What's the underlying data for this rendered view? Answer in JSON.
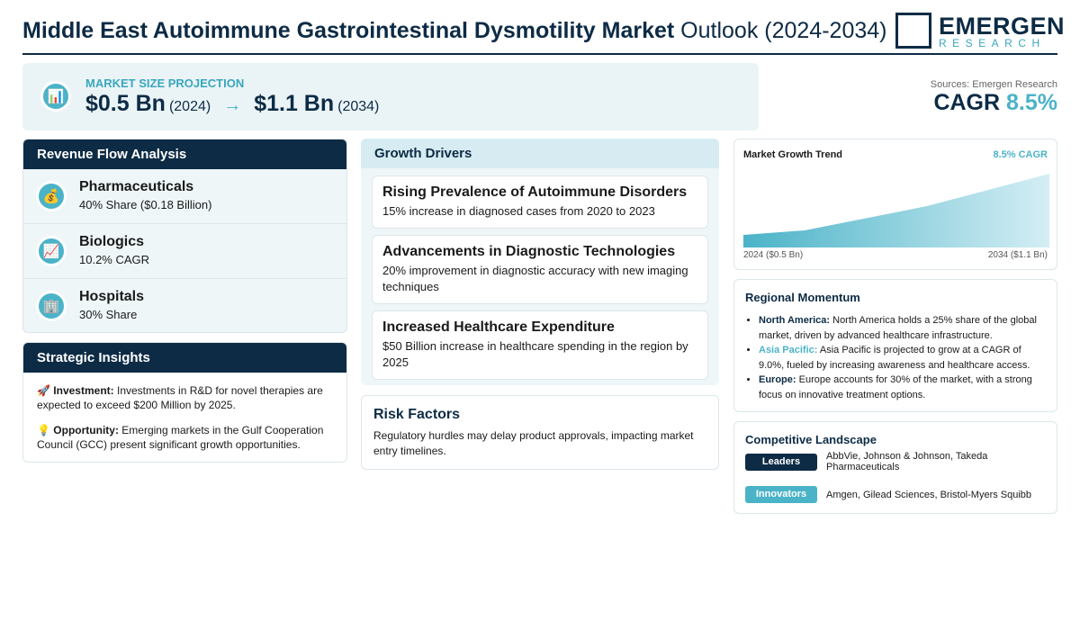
{
  "header": {
    "title_bold": "Middle East Autoimmune Gastrointestinal Dysmotility Market",
    "title_rest": "Outlook (2024-2034)",
    "logo": "EMERGEN",
    "logo_sub": "RESEARCH"
  },
  "projection": {
    "icon": "📊",
    "label": "MARKET SIZE PROJECTION",
    "start_value": "$0.5 Bn",
    "start_year": "(2024)",
    "arrow": "→",
    "end_value": "$1.1 Bn",
    "end_year": "(2034)"
  },
  "summary": {
    "sources": "Sources: Emergen Research",
    "cagr_label": "CAGR",
    "cagr_value": "8.5%"
  },
  "revenue": {
    "title": "Revenue Flow Analysis",
    "items": [
      {
        "icon": "💰",
        "name": "Pharmaceuticals",
        "detail": "40% Share ($0.18 Billion)"
      },
      {
        "icon": "📈",
        "name": "Biologics",
        "detail": "10.2% CAGR"
      },
      {
        "icon": "🏢",
        "name": "Hospitals",
        "detail": "30% Share"
      }
    ]
  },
  "strategic": {
    "title": "Strategic Insights",
    "items": [
      {
        "icon": "🚀",
        "label": "Investment:",
        "text": "Investments in R&D for novel therapies are expected to exceed $200 Million by 2025."
      },
      {
        "icon": "💡",
        "label": "Opportunity:",
        "text": "Emerging markets in the Gulf Cooperation Council (GCC) present significant growth opportunities."
      }
    ]
  },
  "drivers": {
    "title": "Growth Drivers",
    "items": [
      {
        "title": "Rising Prevalence of Autoimmune Disorders",
        "text": "15% increase in diagnosed cases from 2020 to 2023"
      },
      {
        "title": "Advancements in Diagnostic Technologies",
        "text": "20% improvement in diagnostic accuracy with new imaging techniques"
      },
      {
        "title": "Increased Healthcare Expenditure",
        "text": "$50 Billion increase in healthcare spending in the region by 2025"
      }
    ]
  },
  "risk": {
    "title": "Risk Factors",
    "text": "Regulatory hurdles may delay product approvals, impacting market entry timelines."
  },
  "trend": {
    "title": "Market Growth Trend",
    "badge": "8.5% CAGR",
    "start_label": "2024 ($0.5 Bn)",
    "end_label": "2034 ($1.1 Bn)"
  },
  "regional": {
    "title": "Regional Momentum",
    "items": [
      {
        "region": "North America:",
        "text": "North America holds a 25% share of the global market, driven by advanced healthcare infrastructure."
      },
      {
        "region": "Asia Pacific:",
        "text": "Asia Pacific is projected to grow at a CAGR of 9.0%, fueled by increasing awareness and healthcare access."
      },
      {
        "region": "Europe:",
        "text": "Europe accounts for 30% of the market, with a strong focus on innovative treatment options."
      }
    ]
  },
  "competitive": {
    "title": "Competitive Landscape",
    "rows": [
      {
        "tag": "Leaders",
        "names": "AbbVie, Johnson & Johnson, Takeda Pharmaceuticals"
      },
      {
        "tag": "Innovators",
        "names": "Amgen, Gilead Sciences, Bristol-Myers Squibb"
      }
    ]
  }
}
